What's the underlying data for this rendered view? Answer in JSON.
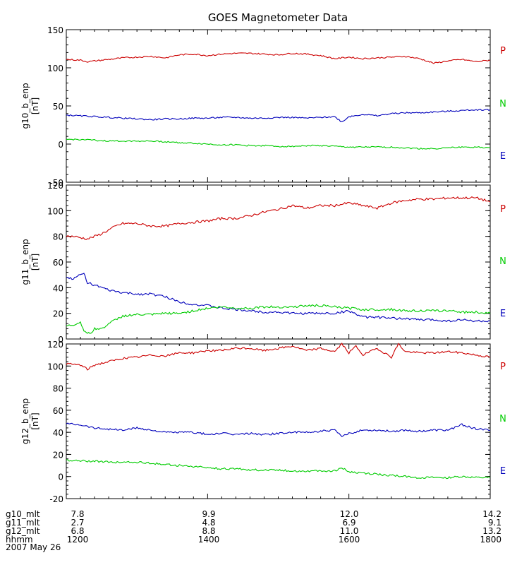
{
  "title": "GOES Magnetometer Data",
  "colors": {
    "P": "#cc0000",
    "N": "#0000bb",
    "E": "#00cc00",
    "axis": "#000000"
  },
  "chart_data": [
    {
      "type": "line",
      "ylabel": "g10_b_enp",
      "yunit": "[nT]",
      "ylim": [
        -50,
        150
      ],
      "yticks": [
        -50,
        0,
        50,
        100,
        150
      ],
      "xlim": [
        1200,
        1800
      ],
      "legend": [
        {
          "label": "P",
          "color": "#cc0000"
        },
        {
          "label": "N",
          "color": "#00cc00"
        },
        {
          "label": "E",
          "color": "#0000bb"
        }
      ],
      "series": [
        {
          "color": "#cc0000",
          "x": [
            1200,
            1220,
            1230,
            1240,
            1260,
            1280,
            1300,
            1320,
            1340,
            1360,
            1380,
            1400,
            1420,
            1440,
            1460,
            1480,
            1500,
            1520,
            1540,
            1560,
            1580,
            1600,
            1620,
            1640,
            1660,
            1680,
            1700,
            1720,
            1740,
            1760,
            1780,
            1800
          ],
          "y": [
            111,
            110,
            108,
            109,
            111,
            113,
            114,
            115,
            113,
            117,
            118,
            116,
            118,
            119,
            119,
            118,
            117,
            119,
            118,
            116,
            112,
            114,
            112,
            113,
            114,
            115,
            112,
            106,
            109,
            111,
            108,
            110
          ]
        },
        {
          "color": "#0000bb",
          "x": [
            1200,
            1220,
            1240,
            1260,
            1280,
            1300,
            1320,
            1340,
            1360,
            1380,
            1400,
            1420,
            1440,
            1460,
            1480,
            1500,
            1520,
            1540,
            1560,
            1580,
            1590,
            1600,
            1620,
            1640,
            1660,
            1680,
            1700,
            1720,
            1740,
            1760,
            1780,
            1800
          ],
          "y": [
            38,
            37,
            36,
            35,
            34,
            33,
            32,
            33,
            33,
            34,
            34,
            35,
            35,
            34,
            34,
            35,
            35,
            34,
            35,
            36,
            29,
            36,
            39,
            37,
            40,
            41,
            41,
            42,
            43,
            44,
            45,
            45
          ]
        },
        {
          "color": "#00cc00",
          "x": [
            1200,
            1220,
            1240,
            1260,
            1280,
            1300,
            1320,
            1340,
            1360,
            1380,
            1400,
            1420,
            1440,
            1460,
            1480,
            1500,
            1520,
            1540,
            1560,
            1580,
            1600,
            1620,
            1640,
            1660,
            1680,
            1700,
            1720,
            1740,
            1760,
            1780,
            1800
          ],
          "y": [
            6,
            6,
            5,
            4,
            4,
            4,
            4,
            3,
            2,
            1,
            0,
            -1,
            -1,
            -2,
            -2,
            -3,
            -3,
            -2,
            -2,
            -3,
            -4,
            -4,
            -4,
            -4,
            -5,
            -6,
            -6,
            -5,
            -4,
            -4,
            -5
          ]
        }
      ]
    },
    {
      "type": "line",
      "ylabel": "g11_b_enp",
      "yunit": "[nT]",
      "ylim": [
        0,
        120
      ],
      "yticks": [
        0,
        20,
        40,
        60,
        80,
        100,
        120
      ],
      "xlim": [
        1200,
        1800
      ],
      "legend": [
        {
          "label": "P",
          "color": "#cc0000"
        },
        {
          "label": "N",
          "color": "#00cc00"
        },
        {
          "label": "E",
          "color": "#0000bb"
        }
      ],
      "series": [
        {
          "color": "#cc0000",
          "x": [
            1200,
            1210,
            1220,
            1230,
            1240,
            1250,
            1260,
            1270,
            1280,
            1290,
            1300,
            1320,
            1340,
            1360,
            1380,
            1400,
            1420,
            1440,
            1460,
            1480,
            1500,
            1520,
            1540,
            1560,
            1580,
            1600,
            1620,
            1640,
            1660,
            1680,
            1700,
            1720,
            1740,
            1760,
            1780,
            1800
          ],
          "y": [
            80,
            80,
            79,
            78,
            80,
            82,
            85,
            88,
            90,
            90,
            90,
            88,
            88,
            90,
            91,
            92,
            94,
            94,
            96,
            99,
            101,
            104,
            102,
            104,
            104,
            106,
            104,
            102,
            106,
            108,
            109,
            109,
            110,
            110,
            110,
            107
          ]
        },
        {
          "color": "#0000bb",
          "x": [
            1200,
            1210,
            1220,
            1225,
            1230,
            1240,
            1250,
            1260,
            1280,
            1300,
            1320,
            1340,
            1360,
            1380,
            1400,
            1420,
            1440,
            1460,
            1480,
            1500,
            1520,
            1540,
            1560,
            1580,
            1600,
            1620,
            1640,
            1660,
            1680,
            1700,
            1720,
            1740,
            1760,
            1780,
            1800
          ],
          "y": [
            48,
            47,
            50,
            51,
            44,
            42,
            40,
            38,
            36,
            35,
            35,
            33,
            29,
            27,
            26,
            24,
            23,
            22,
            21,
            21,
            20,
            20,
            20,
            20,
            22,
            17,
            17,
            16,
            16,
            15,
            15,
            14,
            15,
            14,
            14
          ]
        },
        {
          "color": "#00cc00",
          "x": [
            1200,
            1210,
            1220,
            1225,
            1230,
            1235,
            1240,
            1250,
            1260,
            1280,
            1300,
            1320,
            1340,
            1360,
            1380,
            1400,
            1420,
            1440,
            1460,
            1480,
            1500,
            1520,
            1540,
            1560,
            1580,
            1600,
            1620,
            1640,
            1660,
            1680,
            1700,
            1720,
            1740,
            1760,
            1780,
            1800
          ],
          "y": [
            10,
            11,
            13,
            7,
            4,
            5,
            8,
            8,
            12,
            18,
            19,
            19,
            20,
            20,
            22,
            24,
            25,
            24,
            24,
            25,
            25,
            25,
            26,
            26,
            25,
            24,
            23,
            23,
            23,
            22,
            22,
            22,
            22,
            21,
            21,
            20
          ]
        }
      ]
    },
    {
      "type": "line",
      "ylabel": "g12_b_enp",
      "yunit": "[nT]",
      "ylim": [
        -20,
        120
      ],
      "yticks": [
        -20,
        0,
        20,
        40,
        60,
        80,
        100,
        120
      ],
      "xlim": [
        1200,
        1800
      ],
      "legend": [
        {
          "label": "P",
          "color": "#cc0000"
        },
        {
          "label": "N",
          "color": "#00cc00"
        },
        {
          "label": "E",
          "color": "#0000bb"
        }
      ],
      "series": [
        {
          "color": "#cc0000",
          "x": [
            1200,
            1220,
            1230,
            1240,
            1260,
            1280,
            1300,
            1320,
            1340,
            1360,
            1380,
            1400,
            1420,
            1440,
            1460,
            1480,
            1500,
            1520,
            1540,
            1560,
            1580,
            1590,
            1600,
            1610,
            1620,
            1640,
            1660,
            1670,
            1680,
            1700,
            1720,
            1740,
            1760,
            1780,
            1800
          ],
          "y": [
            102,
            101,
            97,
            101,
            104,
            107,
            108,
            110,
            109,
            112,
            112,
            114,
            114,
            116,
            116,
            114,
            116,
            118,
            114,
            116,
            113,
            120,
            112,
            118,
            110,
            116,
            108,
            120,
            113,
            112,
            112,
            113,
            112,
            110,
            108
          ]
        },
        {
          "color": "#0000bb",
          "x": [
            1200,
            1220,
            1240,
            1260,
            1280,
            1300,
            1320,
            1340,
            1360,
            1380,
            1400,
            1420,
            1440,
            1460,
            1480,
            1500,
            1520,
            1540,
            1560,
            1580,
            1590,
            1600,
            1620,
            1640,
            1660,
            1680,
            1700,
            1720,
            1740,
            1760,
            1780,
            1800
          ],
          "y": [
            48,
            47,
            44,
            43,
            42,
            44,
            42,
            40,
            40,
            40,
            38,
            39,
            38,
            39,
            38,
            39,
            40,
            40,
            41,
            42,
            36,
            39,
            42,
            42,
            41,
            42,
            41,
            42,
            42,
            47,
            43,
            42
          ]
        },
        {
          "color": "#00cc00",
          "x": [
            1200,
            1220,
            1240,
            1260,
            1280,
            1300,
            1320,
            1340,
            1360,
            1380,
            1400,
            1420,
            1440,
            1460,
            1480,
            1500,
            1520,
            1540,
            1560,
            1580,
            1590,
            1600,
            1620,
            1640,
            1660,
            1680,
            1700,
            1720,
            1740,
            1760,
            1780,
            1800
          ],
          "y": [
            15,
            14,
            14,
            13,
            13,
            13,
            12,
            11,
            10,
            9,
            8,
            7,
            7,
            6,
            6,
            6,
            5,
            5,
            5,
            5,
            8,
            4,
            3,
            2,
            1,
            0,
            -1,
            -1,
            -1,
            0,
            -1,
            -1
          ]
        }
      ]
    }
  ],
  "xaxis": {
    "rows": [
      {
        "label": "g10_mlt",
        "values": [
          "7.8",
          "9.9",
          "12.0",
          "14.2"
        ]
      },
      {
        "label": "g11_mlt",
        "values": [
          "2.7",
          "4.8",
          "6.9",
          "9.1"
        ]
      },
      {
        "label": "g12_mlt",
        "values": [
          "6.8",
          "8.8",
          "11.0",
          "13.2"
        ]
      },
      {
        "label": "hhmm",
        "values": [
          "1200",
          "1400",
          "1600",
          "1800"
        ]
      }
    ],
    "tick_hhmm": [
      1200,
      1400,
      1600,
      1800
    ],
    "date": "2007 May 26"
  }
}
